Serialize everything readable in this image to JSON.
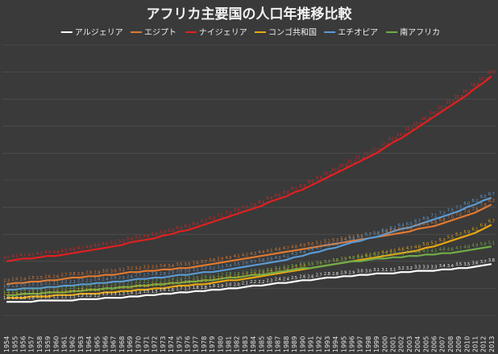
{
  "chart_data": {
    "type": "line",
    "title": "アフリカ主要国の人口年推移比較",
    "xlabel": "",
    "ylabel": "",
    "x": [
      "1954",
      "1955",
      "1956",
      "1957",
      "1958",
      "1959",
      "1960",
      "1961",
      "1962",
      "1963",
      "1964",
      "1965",
      "1966",
      "1967",
      "1968",
      "1969",
      "1970",
      "1971",
      "1972",
      "1973",
      "1974",
      "1975",
      "1976",
      "1977",
      "1978",
      "1979",
      "1980",
      "1981",
      "1982",
      "1983",
      "1984",
      "1985",
      "1986",
      "1987",
      "1988",
      "1989",
      "1990",
      "1991",
      "1992",
      "1993",
      "1994",
      "1995",
      "1996",
      "1997",
      "1998",
      "1999",
      "2000",
      "2001",
      "2002",
      "2003",
      "2004",
      "2005",
      "2006",
      "2007",
      "2008",
      "2009",
      "2010",
      "2011",
      "2012",
      "2013"
    ],
    "ylim": [
      0,
      20
    ],
    "grid": true,
    "legend": "top",
    "series": [
      {
        "name": "アルジェリア",
        "color": "#ffffff",
        "values": [
          1.0,
          1.0,
          1.0,
          1.0,
          1.1,
          1.1,
          1.1,
          1.1,
          1.1,
          1.2,
          1.2,
          1.2,
          1.3,
          1.3,
          1.3,
          1.4,
          1.4,
          1.5,
          1.5,
          1.6,
          1.6,
          1.7,
          1.7,
          1.8,
          1.8,
          1.9,
          1.9,
          2.0,
          2.0,
          2.1,
          2.2,
          2.2,
          2.3,
          2.4,
          2.4,
          2.5,
          2.6,
          2.6,
          2.7,
          2.8,
          2.8,
          2.9,
          2.9,
          3.0,
          3.0,
          3.1,
          3.1,
          3.1,
          3.2,
          3.2,
          3.3,
          3.3,
          3.3,
          3.4,
          3.4,
          3.5,
          3.5,
          3.6,
          3.7,
          3.8
        ]
      },
      {
        "name": "エジプト",
        "color": "#e07a32",
        "values": [
          2.3,
          2.4,
          2.4,
          2.5,
          2.5,
          2.6,
          2.6,
          2.7,
          2.8,
          2.8,
          2.9,
          2.9,
          3.0,
          3.0,
          3.1,
          3.2,
          3.2,
          3.3,
          3.3,
          3.4,
          3.4,
          3.5,
          3.5,
          3.6,
          3.7,
          3.8,
          3.9,
          4.0,
          4.1,
          4.2,
          4.3,
          4.4,
          4.5,
          4.6,
          4.7,
          4.8,
          4.9,
          5.0,
          5.1,
          5.2,
          5.3,
          5.4,
          5.5,
          5.6,
          5.7,
          5.8,
          5.9,
          6.0,
          6.1,
          6.2,
          6.4,
          6.5,
          6.6,
          6.8,
          7.0,
          7.2,
          7.4,
          7.6,
          7.9,
          8.2
        ]
      },
      {
        "name": "ナイジェリア",
        "color": "#e02020",
        "values": [
          4.0,
          4.1,
          4.2,
          4.2,
          4.3,
          4.4,
          4.4,
          4.5,
          4.6,
          4.7,
          4.8,
          4.9,
          5.0,
          5.1,
          5.2,
          5.4,
          5.5,
          5.6,
          5.7,
          5.9,
          6.0,
          6.2,
          6.3,
          6.5,
          6.7,
          6.9,
          7.1,
          7.3,
          7.5,
          7.7,
          7.9,
          8.1,
          8.4,
          8.6,
          8.8,
          9.1,
          9.3,
          9.6,
          9.9,
          10.2,
          10.5,
          10.8,
          11.1,
          11.4,
          11.7,
          12.0,
          12.4,
          12.8,
          13.1,
          13.5,
          13.9,
          14.3,
          14.7,
          15.1,
          15.5,
          15.9,
          16.3,
          16.8,
          17.2,
          17.7
        ]
      },
      {
        "name": "コンゴ共和国",
        "color": "#e8a812",
        "values": [
          1.3,
          1.3,
          1.3,
          1.4,
          1.4,
          1.4,
          1.5,
          1.5,
          1.5,
          1.6,
          1.6,
          1.6,
          1.7,
          1.7,
          1.8,
          1.8,
          1.9,
          1.9,
          2.0,
          2.0,
          2.1,
          2.2,
          2.2,
          2.3,
          2.3,
          2.4,
          2.5,
          2.6,
          2.6,
          2.7,
          2.8,
          2.9,
          3.0,
          3.1,
          3.2,
          3.3,
          3.4,
          3.5,
          3.6,
          3.7,
          3.8,
          3.9,
          4.0,
          4.1,
          4.2,
          4.3,
          4.4,
          4.5,
          4.6,
          4.7,
          4.8,
          5.0,
          5.1,
          5.3,
          5.5,
          5.7,
          5.9,
          6.1,
          6.4,
          6.7
        ]
      },
      {
        "name": "エチオピア",
        "color": "#5b9bd5",
        "values": [
          1.9,
          1.9,
          2.0,
          2.0,
          2.0,
          2.1,
          2.1,
          2.2,
          2.2,
          2.3,
          2.3,
          2.4,
          2.4,
          2.5,
          2.5,
          2.6,
          2.7,
          2.7,
          2.8,
          2.8,
          2.9,
          3.0,
          3.0,
          3.1,
          3.2,
          3.2,
          3.3,
          3.4,
          3.5,
          3.6,
          3.7,
          3.8,
          3.9,
          4.0,
          4.1,
          4.3,
          4.4,
          4.6,
          4.7,
          4.9,
          5.0,
          5.2,
          5.4,
          5.5,
          5.7,
          5.8,
          6.0,
          6.2,
          6.4,
          6.5,
          6.7,
          6.9,
          7.1,
          7.3,
          7.5,
          7.7,
          8.0,
          8.2,
          8.5,
          8.7
        ]
      },
      {
        "name": "南アフリカ",
        "color": "#70ad47",
        "values": [
          1.5,
          1.5,
          1.6,
          1.6,
          1.6,
          1.7,
          1.7,
          1.7,
          1.8,
          1.8,
          1.9,
          1.9,
          2.0,
          2.0,
          2.1,
          2.1,
          2.2,
          2.2,
          2.3,
          2.3,
          2.4,
          2.4,
          2.5,
          2.5,
          2.6,
          2.6,
          2.7,
          2.8,
          2.8,
          2.9,
          3.0,
          3.0,
          3.1,
          3.2,
          3.3,
          3.4,
          3.5,
          3.5,
          3.6,
          3.7,
          3.8,
          3.9,
          4.0,
          4.0,
          4.1,
          4.2,
          4.2,
          4.3,
          4.3,
          4.4,
          4.4,
          4.5,
          4.5,
          4.6,
          4.6,
          4.7,
          4.8,
          4.9,
          5.0,
          5.1
        ]
      }
    ]
  }
}
